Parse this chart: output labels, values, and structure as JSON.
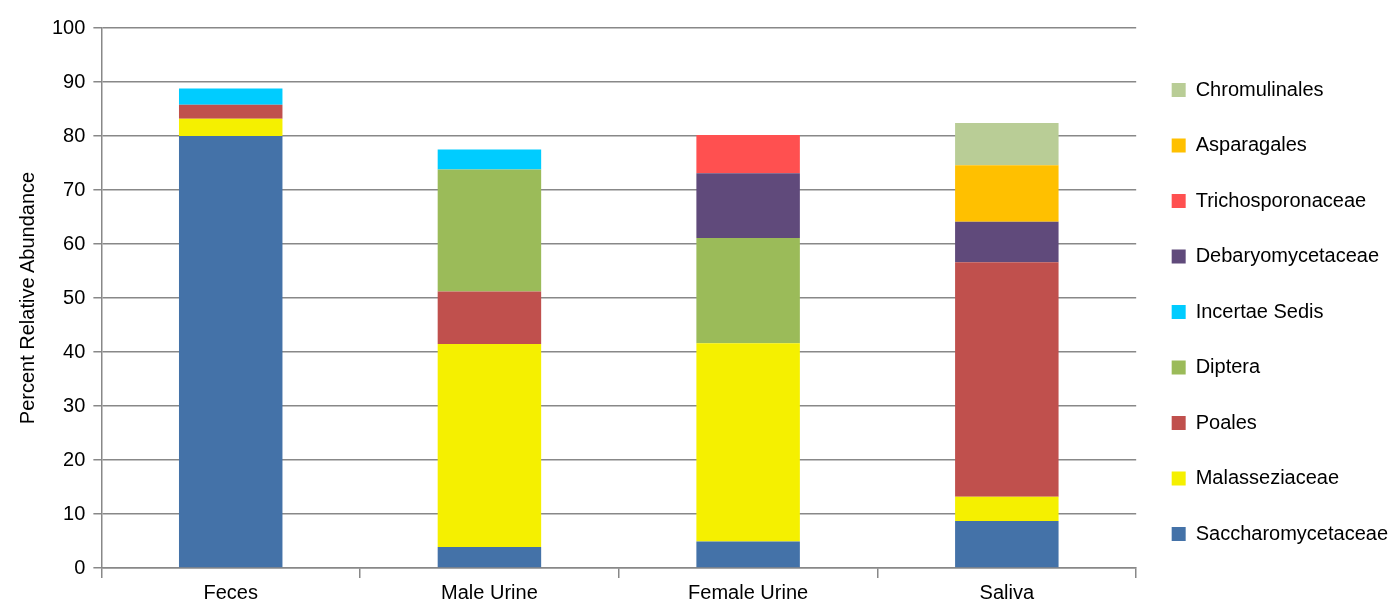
{
  "chart_data": {
    "type": "bar",
    "stacked": true,
    "ylabel": "Percent Relative Abundance",
    "categories": [
      "Feces",
      "Male Urine",
      "Female Urine",
      "Saliva"
    ],
    "series": [
      {
        "name": "Saccharomycetaceae",
        "color": "#4472a8",
        "values": [
          80.0,
          3.9,
          4.9,
          8.7
        ]
      },
      {
        "name": "Malasseziaceae",
        "color": "#f5f000",
        "values": [
          3.2,
          37.6,
          36.7,
          4.5
        ]
      },
      {
        "name": "Poales",
        "color": "#c0504d",
        "values": [
          2.6,
          9.7,
          null,
          43.4
        ]
      },
      {
        "name": "Diptera",
        "color": "#9bbb59",
        "values": [
          null,
          22.6,
          19.5,
          null
        ]
      },
      {
        "name": "Incertae Sedis",
        "color": "#00ccff",
        "values": [
          3.0,
          3.7,
          null,
          null
        ]
      },
      {
        "name": "Debaryomycetaceae",
        "color": "#604a7b",
        "values": [
          null,
          null,
          12.0,
          7.5
        ]
      },
      {
        "name": "Trichosporonaceae",
        "color": "#ff5050",
        "values": [
          null,
          null,
          7.1,
          null
        ]
      },
      {
        "name": "Asparagales",
        "color": "#ffc000",
        "values": [
          null,
          null,
          null,
          10.5
        ]
      },
      {
        "name": "Chromulinales",
        "color": "#b9cd96",
        "values": [
          null,
          null,
          null,
          7.8
        ]
      }
    ],
    "ylim": [
      0,
      100
    ],
    "yticks": [
      0,
      10,
      20,
      30,
      40,
      50,
      60,
      70,
      80,
      90,
      100
    ],
    "grid": "y",
    "legend": "right"
  }
}
